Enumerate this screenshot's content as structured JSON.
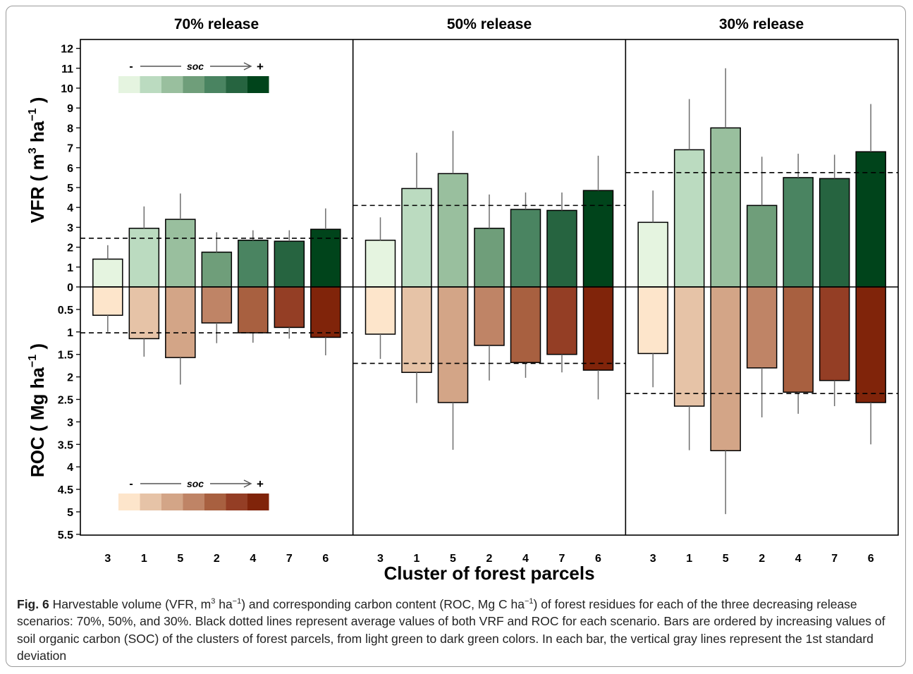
{
  "chart_data": {
    "type": "bar",
    "panels": [
      "70% release",
      "50% release",
      "30% release"
    ],
    "categories": [
      "3",
      "1",
      "5",
      "2",
      "4",
      "7",
      "6"
    ],
    "xlabel": "Cluster of forest parcels",
    "ylabel_top": "VFR ( m",
    "ylabel_top_sup1": "3",
    "ylabel_top_mid": " ha",
    "ylabel_top_sup2": "−1",
    "ylabel_top_end": " )",
    "ylabel_bottom": "ROC ( Mg ha",
    "ylabel_bottom_sup": "−1",
    "ylabel_bottom_end": " )",
    "vfr_ticks": [
      "0",
      "1",
      "2",
      "3",
      "4",
      "5",
      "6",
      "7",
      "8",
      "9",
      "10",
      "11",
      "12"
    ],
    "roc_ticks": [
      "0.5",
      "1",
      "1.5",
      "2",
      "2.5",
      "3",
      "3.5",
      "4",
      "4.5",
      "5",
      "5.5"
    ],
    "vfr_ylim": [
      0,
      12
    ],
    "roc_ylim": [
      0,
      5.5
    ],
    "vfr": [
      {
        "values": [
          1.4,
          2.95,
          3.4,
          1.75,
          2.35,
          2.3,
          2.9
        ],
        "sd": [
          0.7,
          1.1,
          1.3,
          1.0,
          0.5,
          0.55,
          1.05
        ],
        "mean": 2.45
      },
      {
        "values": [
          2.35,
          4.95,
          5.7,
          2.95,
          3.9,
          3.85,
          4.85
        ],
        "sd": [
          1.15,
          1.8,
          2.15,
          1.7,
          0.85,
          0.9,
          1.75
        ],
        "mean": 4.1
      },
      {
        "values": [
          3.25,
          6.9,
          8.0,
          4.1,
          5.5,
          5.45,
          6.8
        ],
        "sd": [
          1.6,
          2.55,
          3.0,
          2.45,
          1.2,
          1.2,
          2.4
        ],
        "mean": 5.75
      }
    ],
    "roc": [
      {
        "values": [
          0.63,
          1.15,
          1.57,
          0.8,
          1.02,
          0.9,
          1.12
        ],
        "sd": [
          0.37,
          0.4,
          0.6,
          0.45,
          0.22,
          0.25,
          0.4
        ],
        "mean": 1.02
      },
      {
        "values": [
          1.05,
          1.9,
          2.57,
          1.3,
          1.68,
          1.5,
          1.85
        ],
        "sd": [
          0.55,
          0.68,
          1.05,
          0.78,
          0.34,
          0.4,
          0.65
        ],
        "mean": 1.7
      },
      {
        "values": [
          1.48,
          2.65,
          3.64,
          1.8,
          2.34,
          2.08,
          2.57
        ],
        "sd": [
          0.75,
          0.98,
          1.41,
          1.1,
          0.48,
          0.57,
          0.93
        ],
        "mean": 2.37
      }
    ],
    "green_colors": [
      "#e5f4e0",
      "#bbdbc0",
      "#99bf9e",
      "#6f9e7a",
      "#4a8461",
      "#266440",
      "#00441b"
    ],
    "brown_colors": [
      "#fde5cb",
      "#e6c3a7",
      "#d3a587",
      "#bf8466",
      "#a86040",
      "#943e25",
      "#80240a"
    ],
    "legend_soc_label": "soc",
    "legend_minus": "-",
    "legend_plus": "+",
    "mean_line_style": "dashed",
    "grid": false
  },
  "caption": {
    "fig_label": "Fig. 6",
    "line1_a": " Harvestable volume (VFR, m",
    "line1_sup1": "3",
    "line1_b": " ha",
    "line1_sup2": "−1",
    "line1_c": ") and corresponding carbon content (ROC, Mg C ha",
    "line1_sup3": "−1",
    "line1_d": ") of forest residues for each of the three decreasing",
    "rest": "release scenarios: 70%, 50%, and 30%. Black dotted lines represent average values of both VRF and ROC for each scenario. Bars are ordered by increasing values of soil organic carbon (SOC) of the clusters of forest parcels, from light green to dark green colors. In each bar, the vertical gray lines represent the 1st standard deviation"
  }
}
